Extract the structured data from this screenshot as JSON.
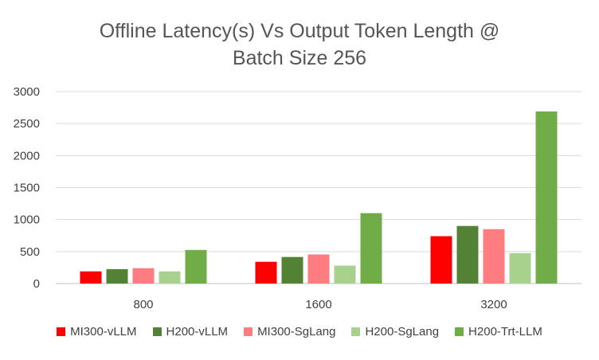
{
  "chart_data": {
    "type": "bar",
    "title_lines": [
      "Offline Latency(s) Vs Output Token Length @",
      "Batch Size 256"
    ],
    "categories": [
      "800",
      "1600",
      "3200"
    ],
    "ylim": [
      0,
      3000
    ],
    "yticks": [
      "0",
      "500",
      "1000",
      "1500",
      "2000",
      "2500",
      "3000"
    ],
    "grid": true,
    "legend_position": "bottom",
    "series": [
      {
        "name": "MI300-vLLM",
        "color": "#ff0000",
        "values": [
          190,
          340,
          740
        ]
      },
      {
        "name": "H200-vLLM",
        "color": "#548235",
        "values": [
          225,
          415,
          900
        ]
      },
      {
        "name": "MI300-SgLang",
        "color": "#ff7c80",
        "values": [
          240,
          455,
          850
        ]
      },
      {
        "name": "H200-SgLang",
        "color": "#a9d18e",
        "values": [
          190,
          280,
          475
        ]
      },
      {
        "name": "H200-Trt-LLM",
        "color": "#70ad47",
        "values": [
          525,
          1100,
          2690
        ]
      }
    ]
  }
}
